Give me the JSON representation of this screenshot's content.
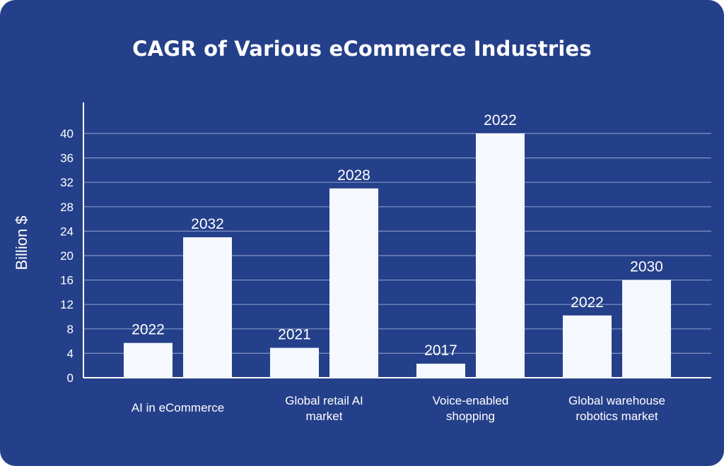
{
  "chart_data": {
    "type": "bar",
    "title": "CAGR of Various eCommerce Industries",
    "ylabel": "Billion $",
    "xlabel": "",
    "ylim": [
      0,
      44
    ],
    "yticks": [
      0,
      4,
      8,
      12,
      16,
      20,
      24,
      28,
      32,
      36,
      40
    ],
    "grid": true,
    "colors": {
      "background": "#25408a",
      "bar": "#f5f8ff",
      "grid": "#8294c4",
      "text": "#ffffff"
    },
    "categories": [
      {
        "lines": [
          "AI in eCommerce"
        ],
        "bars": [
          {
            "label": "2022",
            "value": 5.7
          },
          {
            "label": "2032",
            "value": 23
          }
        ]
      },
      {
        "lines": [
          "Global retail AI",
          "market"
        ],
        "bars": [
          {
            "label": "2021",
            "value": 4.9
          },
          {
            "label": "2028",
            "value": 31
          }
        ]
      },
      {
        "lines": [
          "Voice-enabled",
          "shopping"
        ],
        "bars": [
          {
            "label": "2017",
            "value": 2.3
          },
          {
            "label": "2022",
            "value": 40
          }
        ]
      },
      {
        "lines": [
          "Global warehouse",
          "robotics market"
        ],
        "bars": [
          {
            "label": "2022",
            "value": 10.2
          },
          {
            "label": "2030",
            "value": 16
          }
        ]
      }
    ]
  }
}
